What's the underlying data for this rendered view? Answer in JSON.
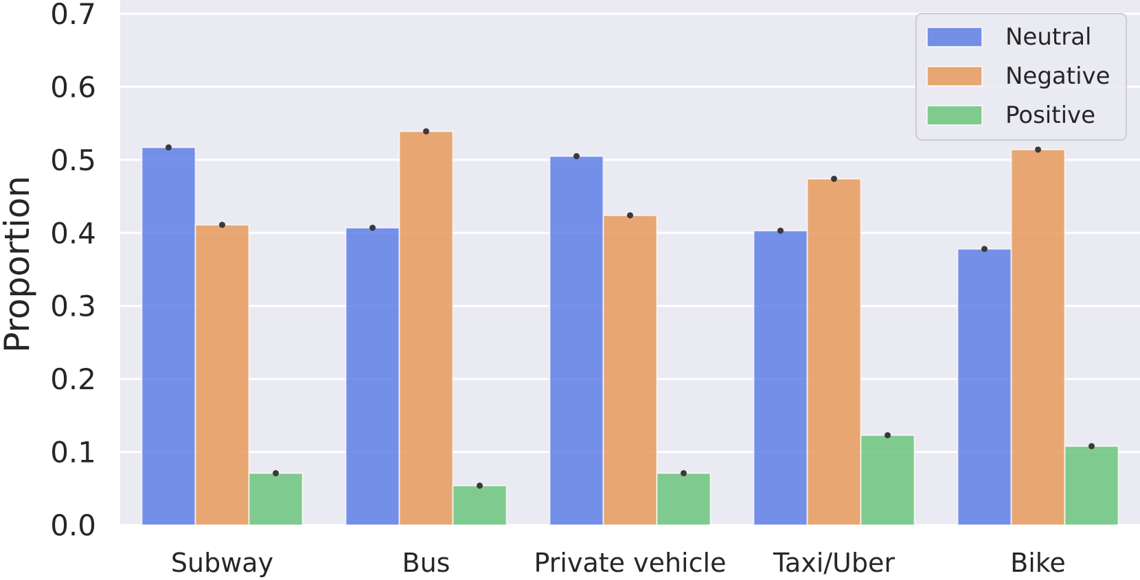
{
  "chart_data": {
    "type": "bar",
    "categories": [
      "Subway",
      "Bus",
      "Private vehicle",
      "Taxi/Uber",
      "Bike"
    ],
    "series": [
      {
        "name": "Neutral",
        "color": "#5f7fe6",
        "values": [
          0.517,
          0.407,
          0.505,
          0.403,
          0.378
        ]
      },
      {
        "name": "Negative",
        "color": "#e69a5c",
        "values": [
          0.411,
          0.539,
          0.424,
          0.474,
          0.514
        ]
      },
      {
        "name": "Positive",
        "color": "#6cc47c",
        "values": [
          0.071,
          0.054,
          0.071,
          0.123,
          0.108
        ]
      }
    ],
    "xlabel": "",
    "ylabel": "Proportion",
    "ylim": [
      0,
      0.7
    ],
    "yticks": [
      "0.0",
      "0.1",
      "0.2",
      "0.3",
      "0.4",
      "0.5",
      "0.6",
      "0.7"
    ],
    "grid": true,
    "legend_position": "top-right",
    "background_color": "#eaeaf2",
    "marker_color": "#3a3a3a"
  }
}
